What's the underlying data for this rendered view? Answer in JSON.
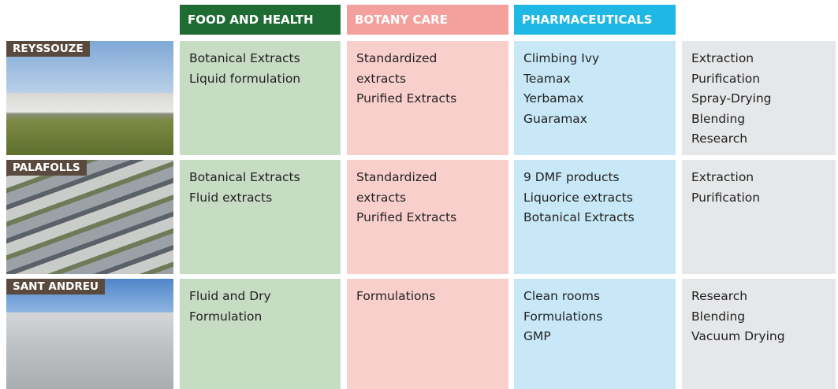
{
  "header": {
    "columns": [
      "FOOD AND HEALTH",
      "BOTANY CARE",
      "PHARMACEUTICALS"
    ]
  },
  "table": {
    "rows": [
      {
        "site": "REYSSOUZE",
        "cells": [
          [
            "Botanical Extracts",
            "Liquid formulation"
          ],
          [
            "Standardized",
            "extracts",
            "Purified Extracts"
          ],
          [
            "Climbing Ivy",
            "Teamax",
            "Yerbamax",
            "Guaramax"
          ],
          [
            "Extraction",
            "Purification",
            "Spray-Drying",
            "Blending",
            "Research"
          ]
        ]
      },
      {
        "site": "PALAFOLLS",
        "cells": [
          [
            "Botanical Extracts",
            "Fluid extracts"
          ],
          [
            "Standardized",
            "extracts",
            "Purified Extracts"
          ],
          [
            "9 DMF products",
            "Liquorice extracts",
            "Botanical Extracts"
          ],
          [
            "Extraction",
            "Purification"
          ]
        ]
      },
      {
        "site": "SANT ANDREU",
        "cells": [
          [
            "Fluid and Dry",
            "Formulation"
          ],
          [
            "Formulations"
          ],
          [
            "Clean rooms",
            "Formulations",
            "GMP"
          ],
          [
            "Research",
            "Blending",
            "Vacuum Drying"
          ]
        ]
      }
    ]
  }
}
